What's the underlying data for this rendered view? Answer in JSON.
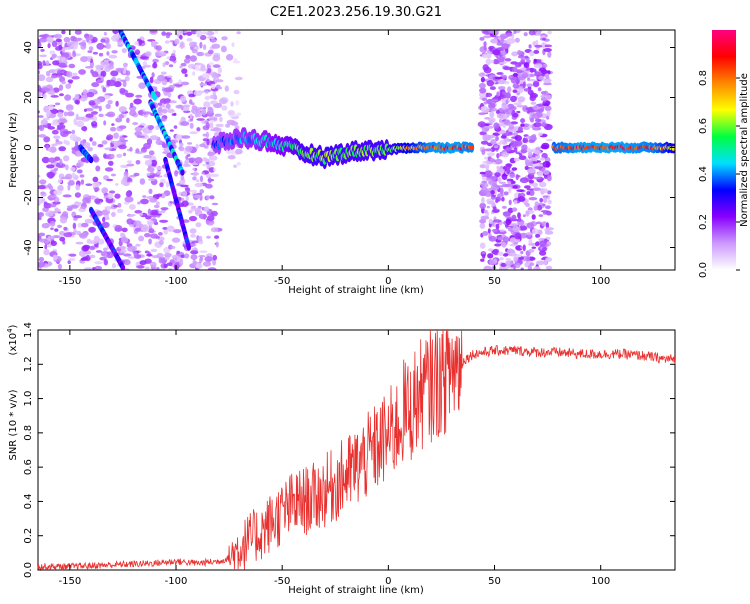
{
  "title": "C2E1.2023.256.19.30.G21",
  "chart_data": [
    {
      "type": "heatmap",
      "xlabel": "Height of straight line (km)",
      "ylabel": "Frequency (Hz)",
      "xlim": [
        -165,
        135
      ],
      "ylim": [
        -49,
        47
      ],
      "x_ticks": [
        -150,
        -100,
        -50,
        0,
        50,
        100
      ],
      "y_ticks": [
        -40,
        -20,
        0,
        20,
        40
      ],
      "colorbar": {
        "label": "Normalized spectral amplitude",
        "range": [
          0,
          1
        ],
        "ticks": [
          0.0,
          0.2,
          0.4,
          0.6,
          0.8
        ],
        "colors": [
          "#ffffff",
          "#cc99ff",
          "#8800ff",
          "#0000ff",
          "#00e0ff",
          "#00ff40",
          "#ffff00",
          "#ff8800",
          "#ff0000",
          "#ff0080"
        ]
      },
      "ridge": [
        {
          "x": -82,
          "f": 1,
          "a": 0.38
        },
        {
          "x": -70,
          "f": 4,
          "a": 0.42
        },
        {
          "x": -60,
          "f": 3,
          "a": 0.45
        },
        {
          "x": -50,
          "f": 1,
          "a": 0.5
        },
        {
          "x": -40,
          "f": -2,
          "a": 0.6
        },
        {
          "x": -30,
          "f": -4,
          "a": 0.62
        },
        {
          "x": -20,
          "f": -2,
          "a": 0.6
        },
        {
          "x": -10,
          "f": -1,
          "a": 0.6
        },
        {
          "x": 0,
          "f": -1,
          "a": 0.62
        },
        {
          "x": 10,
          "f": 0,
          "a": 0.75
        },
        {
          "x": 20,
          "f": 0,
          "a": 0.9
        },
        {
          "x": 30,
          "f": 0,
          "a": 0.92
        },
        {
          "x": 40,
          "f": 0,
          "a": 0.88
        },
        {
          "x": 78,
          "f": 0,
          "a": 0.85
        },
        {
          "x": 90,
          "f": 0,
          "a": 0.92
        },
        {
          "x": 110,
          "f": 0,
          "a": 0.92
        },
        {
          "x": 125,
          "f": 0,
          "a": 0.88
        },
        {
          "x": 135,
          "f": 0,
          "a": 0.7
        }
      ],
      "streaks": [
        {
          "x0": -127,
          "f0": 48,
          "x1": -110,
          "f1": 20,
          "a": 0.45
        },
        {
          "x0": -112,
          "f0": 18,
          "x1": -97,
          "f1": -10,
          "a": 0.45
        },
        {
          "x0": -105,
          "f0": -5,
          "x1": -94,
          "f1": -40,
          "a": 0.35
        },
        {
          "x0": -140,
          "f0": -25,
          "x1": -125,
          "f1": -48,
          "a": 0.35
        },
        {
          "x0": -145,
          "f0": 0,
          "x1": -140,
          "f1": -5,
          "a": 0.4
        }
      ]
    },
    {
      "type": "line",
      "xlabel": "Height of straight line (km)",
      "ylabel": "SNR (10 * v/v)",
      "y_scale_note": "(x10",
      "y_scale_exp": "4",
      "y_scale_close": ")",
      "xlim": [
        -165,
        135
      ],
      "ylim": [
        0,
        1.4
      ],
      "x_ticks": [
        -150,
        -100,
        -50,
        0,
        50,
        100
      ],
      "y_ticks": [
        "0.0",
        "0.2",
        "0.4",
        "0.6",
        "0.8",
        "1.0",
        "1.2",
        "1.4"
      ],
      "series": [
        {
          "color": "#e8302e",
          "x": [
            -165,
            -150,
            -130,
            -110,
            -100,
            -90,
            -80,
            -75,
            -70,
            -65,
            -60,
            -55,
            -50,
            -45,
            -40,
            -35,
            -30,
            -25,
            -20,
            -15,
            -10,
            -5,
            0,
            5,
            8,
            10,
            12,
            15,
            20,
            25,
            30,
            35,
            40,
            50,
            60,
            70,
            80,
            90,
            100,
            110,
            120,
            125,
            130,
            135
          ],
          "y": [
            0.02,
            0.02,
            0.03,
            0.04,
            0.05,
            0.04,
            0.05,
            0.07,
            0.13,
            0.18,
            0.22,
            0.28,
            0.33,
            0.38,
            0.4,
            0.42,
            0.46,
            0.5,
            0.55,
            0.6,
            0.66,
            0.72,
            0.78,
            0.85,
            0.95,
            0.9,
            0.98,
            1.02,
            1.08,
            1.12,
            1.18,
            1.22,
            1.26,
            1.28,
            1.28,
            1.27,
            1.27,
            1.26,
            1.26,
            1.26,
            1.25,
            1.24,
            1.23,
            1.23
          ]
        }
      ]
    }
  ]
}
